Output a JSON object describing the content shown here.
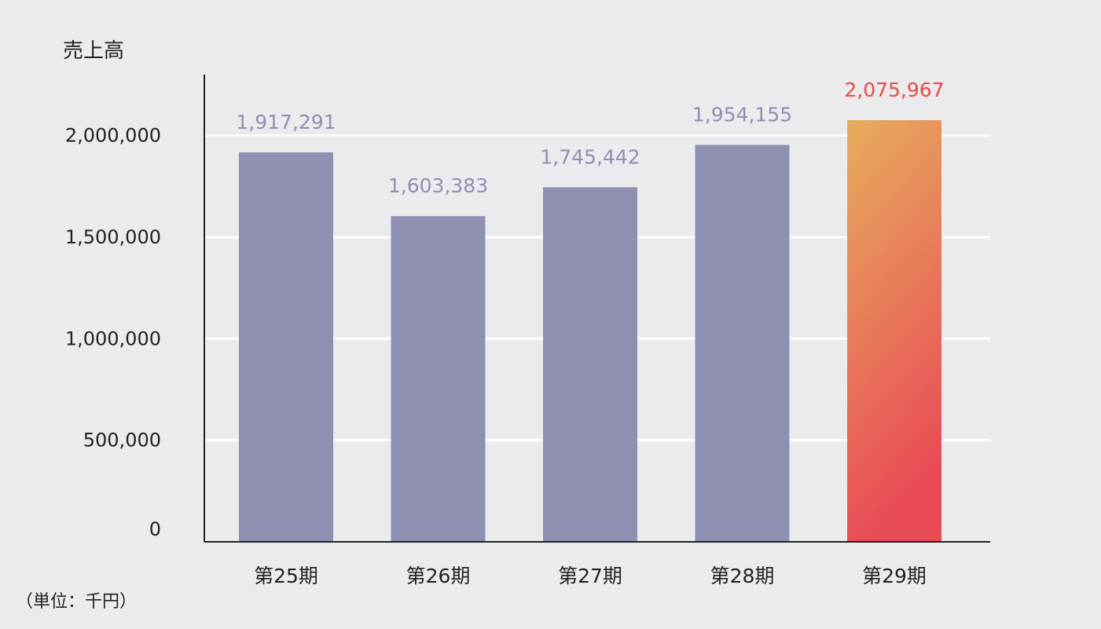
{
  "chart_data": {
    "type": "bar",
    "title": "売上高",
    "unit_label": "（単位：千円）",
    "categories": [
      "第25期",
      "第26期",
      "第27期",
      "第28期",
      "第29期"
    ],
    "values": [
      1917291,
      1603383,
      1745442,
      1954155,
      2075967
    ],
    "value_labels": [
      "1,917,291",
      "1,603,383",
      "1,745,442",
      "1,954,155",
      "2,075,967"
    ],
    "yticks": [
      0,
      500000,
      1000000,
      1500000,
      2000000
    ],
    "ytick_labels": [
      "0",
      "500,000",
      "1,000,000",
      "1,500,000",
      "2,000,000"
    ],
    "ylim": [
      0,
      2300000
    ],
    "grid": true,
    "legend": "none",
    "colors": {
      "bar": "#8f8fb2",
      "label": "#8f8fb2",
      "highlight_label": "#e94b44",
      "highlight_gradient_top": "#e8ad5e",
      "highlight_gradient_bottom": "#e94b56",
      "axis": "#222222",
      "grid": "#ffffff"
    },
    "highlight_index": 4
  }
}
